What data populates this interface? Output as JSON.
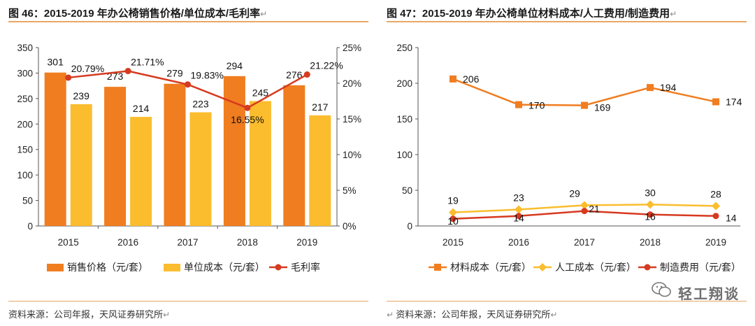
{
  "left": {
    "title": "图 46：2015-2019 年办公椅销售价格/单位成本/毛利率",
    "source": "资料来源：公司年报，天风证券研究所",
    "chart_data": {
      "type": "bar",
      "categories": [
        "2015",
        "2016",
        "2017",
        "2018",
        "2019"
      ],
      "series": [
        {
          "name": "销售价格（元/套）",
          "type": "bar",
          "axis": "left",
          "color": "#f07d20",
          "values": [
            301,
            273,
            279,
            294,
            276
          ]
        },
        {
          "name": "单位成本（元/套）",
          "type": "bar",
          "axis": "left",
          "color": "#fbbd2e",
          "values": [
            239,
            214,
            223,
            245,
            217
          ]
        },
        {
          "name": "毛利率",
          "type": "line",
          "axis": "right",
          "color": "#d63a20",
          "values": [
            20.79,
            21.71,
            19.83,
            16.55,
            21.22
          ],
          "labels": [
            "20.79%",
            "21.71%",
            "19.83%",
            "16.55%",
            "21.22%"
          ]
        }
      ],
      "ylim_left": [
        0,
        350
      ],
      "yticks_left": [
        "0",
        "50",
        "100",
        "150",
        "200",
        "250",
        "300",
        "350"
      ],
      "ylim_right": [
        0,
        25
      ],
      "yticks_right": [
        "0%",
        "5%",
        "10%",
        "15%",
        "20%",
        "25%"
      ],
      "legend_position": "bottom",
      "grid": false
    }
  },
  "right": {
    "title": "图 47：2015-2019 年办公椅单位材料成本/人工费用/制造费用",
    "source": "资料来源：公司年报，天风证券研究所",
    "chart_data": {
      "type": "line",
      "categories": [
        "2015",
        "2016",
        "2017",
        "2018",
        "2019"
      ],
      "series": [
        {
          "name": "材料成本（元/套）",
          "color": "#f07d20",
          "marker": "square",
          "values": [
            206,
            170,
            169,
            194,
            174
          ]
        },
        {
          "name": "人工成本（元/套）",
          "color": "#fbbd2e",
          "marker": "diamond",
          "values": [
            19,
            23,
            29,
            30,
            28
          ]
        },
        {
          "name": "制造费用（元/套）",
          "color": "#d63a20",
          "marker": "circle",
          "values": [
            10,
            14,
            21,
            16,
            14
          ]
        }
      ],
      "ylim": [
        0,
        250
      ],
      "yticks": [
        "0",
        "50",
        "100",
        "150",
        "200",
        "250"
      ],
      "legend_position": "bottom",
      "grid": false
    }
  },
  "watermark": "轻工翔谈"
}
